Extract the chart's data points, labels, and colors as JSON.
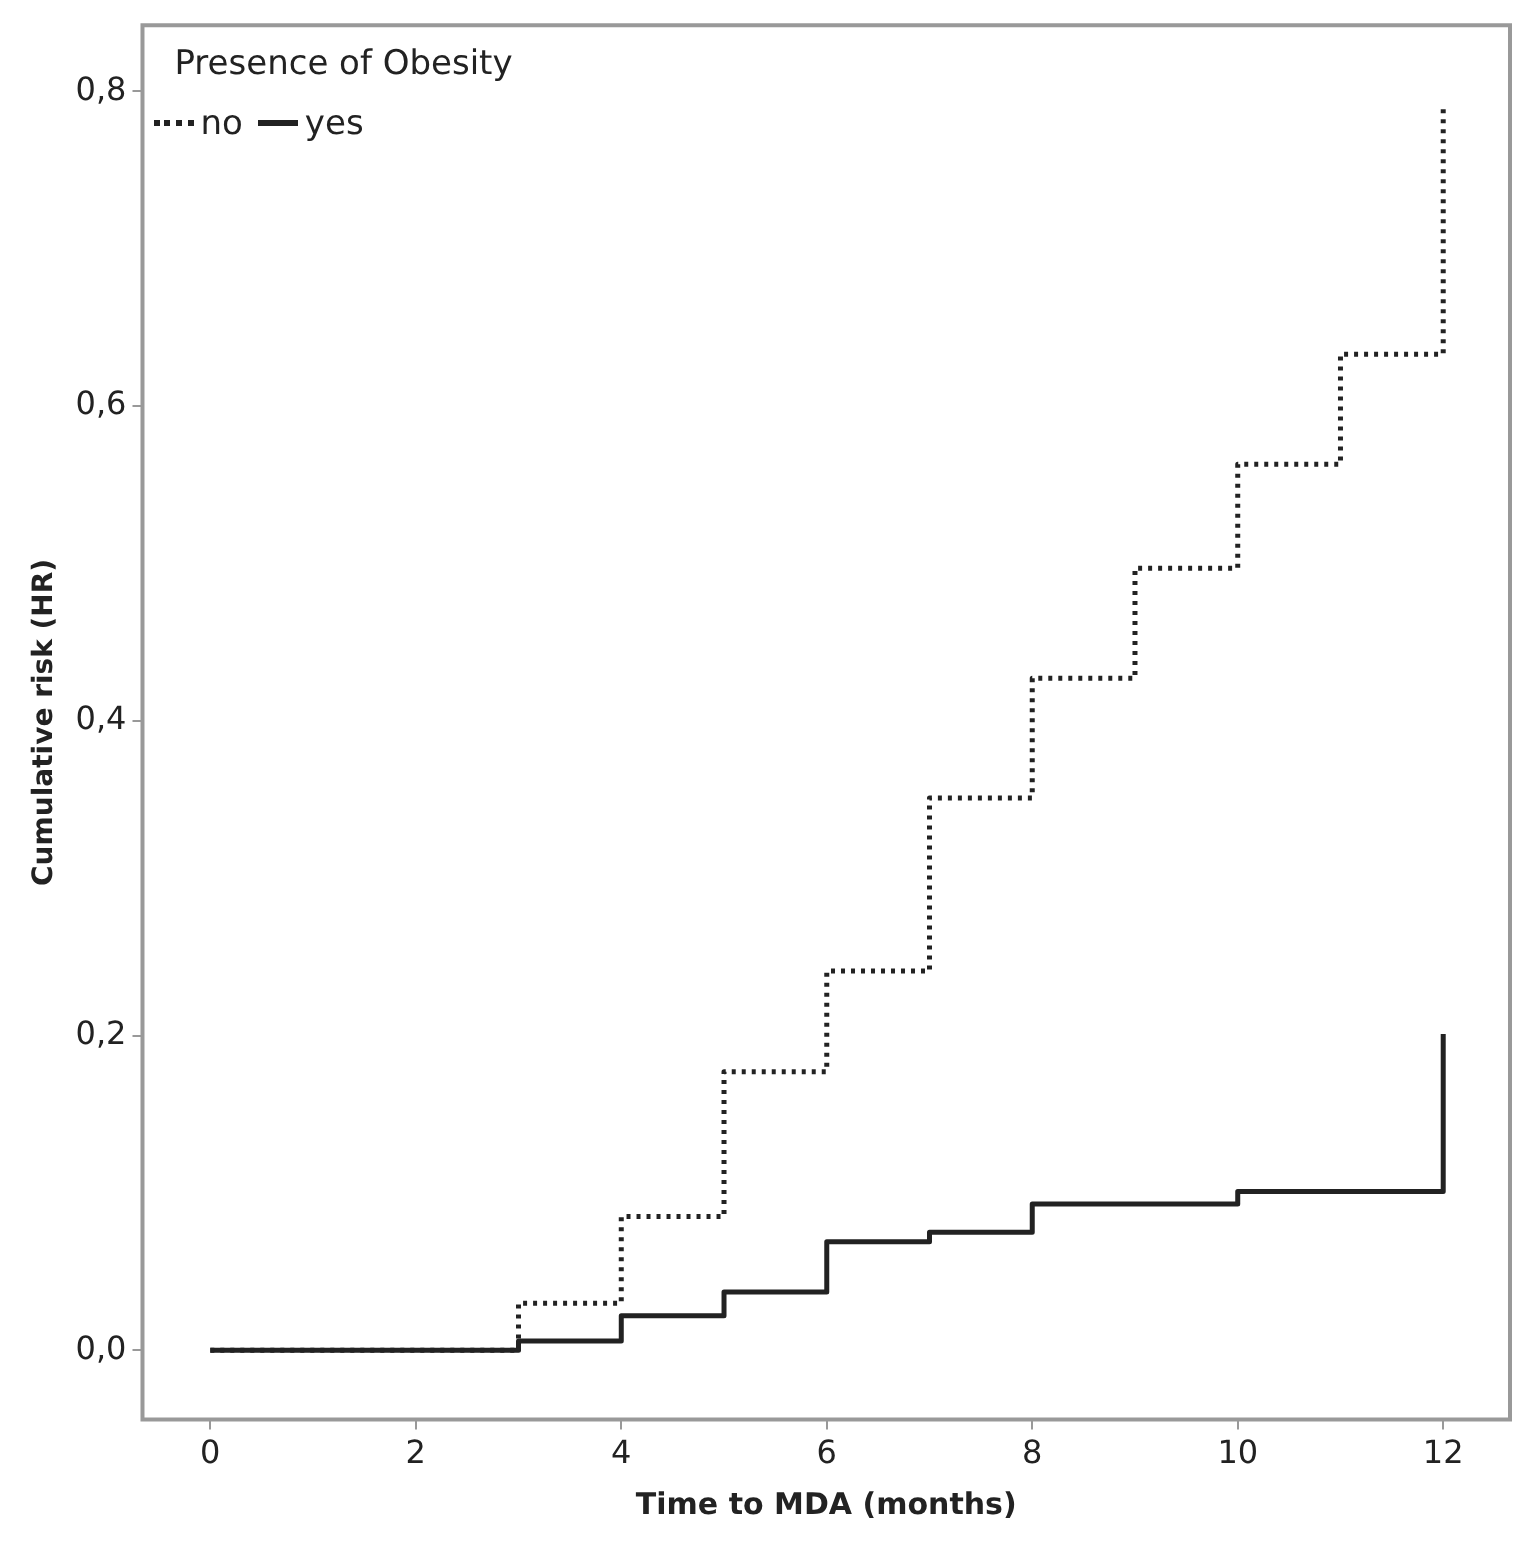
{
  "chart_data": {
    "type": "step",
    "xlabel": "Time to MDA (months)",
    "ylabel": "Cumulative risk (HR)",
    "legend_title": "Presence of Obesity",
    "series": [
      {
        "name": "no",
        "color": "#222222",
        "line_style": "dotted",
        "x": [
          0,
          3,
          4,
          5,
          6,
          7,
          8,
          9,
          10,
          11,
          12
        ],
        "values": [
          0,
          0.03,
          0.085,
          0.177,
          0.241,
          0.351,
          0.427,
          0.497,
          0.563,
          0.633,
          0.791
        ]
      },
      {
        "name": "yes",
        "color": "#222222",
        "line_style": "solid",
        "x": [
          0,
          3,
          4,
          5,
          6,
          7,
          8,
          10,
          12
        ],
        "values": [
          0,
          0.006,
          0.022,
          0.037,
          0.069,
          0.075,
          0.093,
          0.101,
          0.201
        ]
      }
    ],
    "xlim": [
      -0.66,
      12.65
    ],
    "xticks": [
      0,
      2,
      4,
      6,
      8,
      10,
      12
    ],
    "ylim": [
      -0.044,
      0.842
    ],
    "yticks": [
      {
        "value": 0,
        "label": "0,0"
      },
      {
        "value": 0.2,
        "label": "0,2"
      },
      {
        "value": 0.4,
        "label": "0,4"
      },
      {
        "value": 0.6,
        "label": "0,6"
      },
      {
        "value": 0.8,
        "label": "0,8"
      }
    ],
    "grid": false,
    "legend": "top left",
    "marker": "none"
  }
}
